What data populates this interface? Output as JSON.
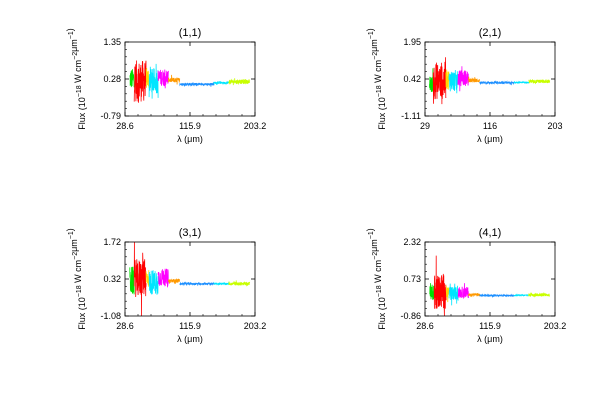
{
  "chart_data": [
    {
      "type": "line",
      "title": "(1,1)",
      "xlabel": "λ (μm)",
      "ylabel_parts": [
        "Flux (10",
        "−18",
        " W cm",
        "−2",
        "μm",
        "−1",
        ")"
      ],
      "xlim": [
        28.6,
        203.2
      ],
      "ylim": [
        -0.79,
        1.35
      ],
      "x_ticks": [
        "28.6",
        "115.9",
        "203.2"
      ],
      "y_ticks": [
        "-0.79",
        "0.28",
        "1.35"
      ],
      "baseline": 0.28,
      "series": [
        {
          "color": "#00e000",
          "x_range": [
            35,
            41
          ],
          "center": 0.28,
          "amplitude": 0.5
        },
        {
          "color": "#ff0000",
          "x_range": [
            41,
            57
          ],
          "center": 0.22,
          "amplitude": 1.0
        },
        {
          "color": "#ffd700",
          "x_range": [
            57,
            61
          ],
          "center": 0.3,
          "amplitude": 0.55
        },
        {
          "color": "#00e5ff",
          "x_range": [
            61,
            73
          ],
          "center": 0.22,
          "amplitude": 0.6
        },
        {
          "color": "#ff00ff",
          "x_range": [
            73,
            87
          ],
          "center": 0.32,
          "amplitude": 0.4
        },
        {
          "color": "#ff9900",
          "x_range": [
            87,
            102
          ],
          "center": 0.25,
          "amplitude": 0.12
        },
        {
          "color": "#1e90ff",
          "x_range": [
            102,
            148
          ],
          "center": 0.13,
          "amplitude": 0.06
        },
        {
          "color": "#00e5ff",
          "x_range": [
            148,
            168
          ],
          "center": 0.17,
          "amplitude": 0.05
        },
        {
          "color": "#c8ff00",
          "x_range": [
            168,
            196
          ],
          "center": 0.2,
          "amplitude": 0.1
        }
      ]
    },
    {
      "type": "line",
      "title": "(2,1)",
      "xlabel": "λ (μm)",
      "ylabel_parts": [
        "Flux (10",
        "−18",
        " W cm",
        "−2",
        "μm",
        "−1",
        ")"
      ],
      "xlim": [
        29,
        203
      ],
      "ylim": [
        -1.11,
        1.95
      ],
      "x_ticks": [
        "29",
        "116",
        "203"
      ],
      "y_ticks": [
        "-1.11",
        "0.42",
        "1.95"
      ],
      "baseline": 0.42,
      "series": [
        {
          "color": "#00e000",
          "x_range": [
            35,
            40
          ],
          "center": 0.2,
          "amplitude": 0.55
        },
        {
          "color": "#ff0000",
          "x_range": [
            40,
            57
          ],
          "center": 0.35,
          "amplitude": 1.3
        },
        {
          "color": "#ffd700",
          "x_range": [
            57,
            61
          ],
          "center": 0.4,
          "amplitude": 0.7
        },
        {
          "color": "#00e5ff",
          "x_range": [
            61,
            73
          ],
          "center": 0.35,
          "amplitude": 0.75
        },
        {
          "color": "#ff00ff",
          "x_range": [
            73,
            87
          ],
          "center": 0.45,
          "amplitude": 0.55
        },
        {
          "color": "#ff9900",
          "x_range": [
            87,
            102
          ],
          "center": 0.36,
          "amplitude": 0.14
        },
        {
          "color": "#1e90ff",
          "x_range": [
            102,
            148
          ],
          "center": 0.26,
          "amplitude": 0.07
        },
        {
          "color": "#00e5ff",
          "x_range": [
            148,
            168
          ],
          "center": 0.28,
          "amplitude": 0.05
        },
        {
          "color": "#c8ff00",
          "x_range": [
            168,
            196
          ],
          "center": 0.32,
          "amplitude": 0.12
        }
      ]
    },
    {
      "type": "line",
      "title": "(3,1)",
      "xlabel": "λ (μm)",
      "ylabel_parts": [
        "Flux (10",
        "−18",
        " W cm",
        "−2",
        "μm",
        "−1",
        ")"
      ],
      "xlim": [
        28.6,
        203.2
      ],
      "ylim": [
        -1.08,
        1.72
      ],
      "x_ticks": [
        "28.6",
        "115.9",
        "203.2"
      ],
      "y_ticks": [
        "-1.08",
        "0.32",
        "1.72"
      ],
      "baseline": 0.32,
      "series": [
        {
          "color": "#00e000",
          "x_range": [
            35,
            41
          ],
          "center": 0.25,
          "amplitude": 0.9
        },
        {
          "color": "#ff0000",
          "x_range": [
            41,
            57
          ],
          "center": 0.35,
          "amplitude": 1.2
        },
        {
          "color": "#ffd700",
          "x_range": [
            57,
            61
          ],
          "center": 0.35,
          "amplitude": 0.6
        },
        {
          "color": "#00e5ff",
          "x_range": [
            61,
            73
          ],
          "center": 0.2,
          "amplitude": 0.8
        },
        {
          "color": "#ff00ff",
          "x_range": [
            73,
            87
          ],
          "center": 0.38,
          "amplitude": 0.55
        },
        {
          "color": "#ff9900",
          "x_range": [
            87,
            102
          ],
          "center": 0.25,
          "amplitude": 0.12
        },
        {
          "color": "#1e90ff",
          "x_range": [
            102,
            148
          ],
          "center": 0.14,
          "amplitude": 0.06
        },
        {
          "color": "#00e5ff",
          "x_range": [
            148,
            168
          ],
          "center": 0.14,
          "amplitude": 0.05
        },
        {
          "color": "#c8ff00",
          "x_range": [
            168,
            196
          ],
          "center": 0.14,
          "amplitude": 0.1
        }
      ]
    },
    {
      "type": "line",
      "title": "(4,1)",
      "xlabel": "λ (μm)",
      "ylabel_parts": [
        "Flux (10",
        "−18",
        " W cm",
        "−2",
        "μm",
        "−1",
        ")"
      ],
      "xlim": [
        28.6,
        203.2
      ],
      "ylim": [
        -0.86,
        2.32
      ],
      "x_ticks": [
        "28.6",
        "115.9",
        "203.2"
      ],
      "y_ticks": [
        "-0.86",
        "0.73",
        "2.32"
      ],
      "baseline": 0.73,
      "series": [
        {
          "color": "#00e000",
          "x_range": [
            35,
            41
          ],
          "center": 0.2,
          "amplitude": 0.6
        },
        {
          "color": "#ff0000",
          "x_range": [
            41,
            57
          ],
          "center": 0.2,
          "amplitude": 1.3
        },
        {
          "color": "#ffd700",
          "x_range": [
            57,
            61
          ],
          "center": 0.15,
          "amplitude": 0.5
        },
        {
          "color": "#00e5ff",
          "x_range": [
            61,
            73
          ],
          "center": 0.1,
          "amplitude": 0.5
        },
        {
          "color": "#ff00ff",
          "x_range": [
            73,
            87
          ],
          "center": 0.15,
          "amplitude": 0.4
        },
        {
          "color": "#ff9900",
          "x_range": [
            87,
            102
          ],
          "center": 0.05,
          "amplitude": 0.1
        },
        {
          "color": "#1e90ff",
          "x_range": [
            102,
            148
          ],
          "center": 0.02,
          "amplitude": 0.05
        },
        {
          "color": "#00e5ff",
          "x_range": [
            148,
            168
          ],
          "center": 0.03,
          "amplitude": 0.04
        },
        {
          "color": "#c8ff00",
          "x_range": [
            168,
            196
          ],
          "center": 0.05,
          "amplitude": 0.1
        }
      ]
    }
  ]
}
